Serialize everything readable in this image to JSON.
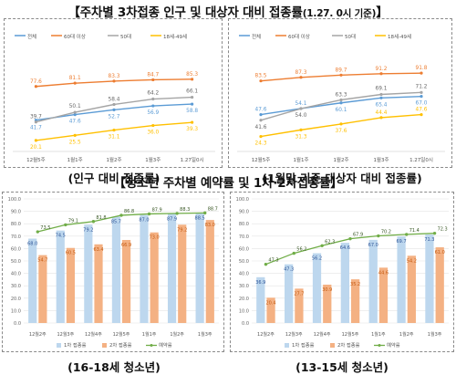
{
  "top_title": "【주차별 3차접종 인구 및 대상자 대비 접종률",
  "top_title_sub": "(1.27. 0시 기준)",
  "top_title_end": "】",
  "mid_title": "【청소년 주차별 예약률 및 1차·2차접종률】",
  "captions": [
    "(인구 대비 접종률)",
    "(1월말 기준 대상자 대비 접종률)",
    "(16-18세 청소년)",
    "(13-15세 청소년)"
  ],
  "colors": {
    "total": "#5b9bd5",
    "age60": "#ed7d31",
    "age50": "#a5a5a5",
    "age18_49": "#ffc000",
    "dose1": "#bdd7ee",
    "dose2": "#f4b183",
    "reservation": "#70ad47"
  },
  "chart_data": [
    {
      "type": "line",
      "categories": [
        "12월5주",
        "1월1주",
        "1월2주",
        "1월3주",
        "1.27일0시"
      ],
      "series": [
        {
          "name": "전체",
          "values": [
            41.7,
            47.6,
            52.7,
            56.9,
            58.8
          ]
        },
        {
          "name": "60대 이상",
          "values": [
            77.6,
            81.1,
            83.3,
            84.7,
            85.3
          ]
        },
        {
          "name": "50대",
          "values": [
            39.7,
            50.1,
            58.4,
            64.2,
            66.1
          ]
        },
        {
          "name": "18세-49세",
          "values": [
            20.1,
            25.5,
            31.1,
            36.0,
            39.3
          ]
        }
      ]
    },
    {
      "type": "line",
      "categories": [
        "12월5주",
        "1월1주",
        "1월2주",
        "1월3주",
        "1.27일0시"
      ],
      "series": [
        {
          "name": "전체",
          "values": [
            47.6,
            54.1,
            60.1,
            65.4,
            67.0
          ]
        },
        {
          "name": "60대 이상",
          "values": [
            83.5,
            87.3,
            89.7,
            91.2,
            91.8
          ]
        },
        {
          "name": "50대",
          "values": [
            41.6,
            54.0,
            63.3,
            69.1,
            71.2
          ]
        },
        {
          "name": "18세-49세",
          "values": [
            24.3,
            31.3,
            37.6,
            44.4,
            47.6
          ]
        }
      ]
    },
    {
      "type": "bar",
      "categories": [
        "12월2주",
        "12월3주",
        "12월4주",
        "12월5주",
        "1월1주",
        "1월2주",
        "1월3주"
      ],
      "ylim": [
        0,
        100
      ],
      "yticks": [
        "0.0",
        "10.0",
        "20.0",
        "30.0",
        "40.0",
        "50.0",
        "60.0",
        "70.0",
        "80.0",
        "90.0",
        "100.0"
      ],
      "series": [
        {
          "name": "1차 접종률",
          "kind": "bar",
          "values": [
            68.0,
            74.5,
            79.2,
            85.7,
            87.0,
            87.9,
            88.5
          ]
        },
        {
          "name": "2차 접종률",
          "kind": "bar",
          "values": [
            54.7,
            60.5,
            63.4,
            66.9,
            73.0,
            79.2,
            83.0
          ]
        },
        {
          "name": "예약률",
          "kind": "line",
          "values": [
            73.5,
            79.1,
            81.8,
            86.8,
            87.9,
            88.3,
            88.7
          ]
        }
      ]
    },
    {
      "type": "bar",
      "categories": [
        "12월2주",
        "12월3주",
        "12월4주",
        "12월5주",
        "1월1주",
        "1월2주",
        "1월3주"
      ],
      "ylim": [
        0,
        100
      ],
      "yticks": [
        "0.0",
        "10.0",
        "20.0",
        "30.0",
        "40.0",
        "50.0",
        "60.0",
        "70.0",
        "80.0",
        "90.0",
        "100.0"
      ],
      "series": [
        {
          "name": "1차 접종률",
          "kind": "bar",
          "values": [
            36.9,
            47.3,
            56.2,
            64.6,
            67.0,
            69.7,
            71.3
          ]
        },
        {
          "name": "2차 접종률",
          "kind": "bar",
          "values": [
            20.4,
            27.7,
            30.9,
            35.2,
            44.6,
            54.2,
            61.0
          ]
        },
        {
          "name": "예약률",
          "kind": "line",
          "values": [
            47.3,
            56.2,
            62.3,
            67.9,
            70.2,
            71.4,
            72.3
          ]
        }
      ]
    }
  ]
}
